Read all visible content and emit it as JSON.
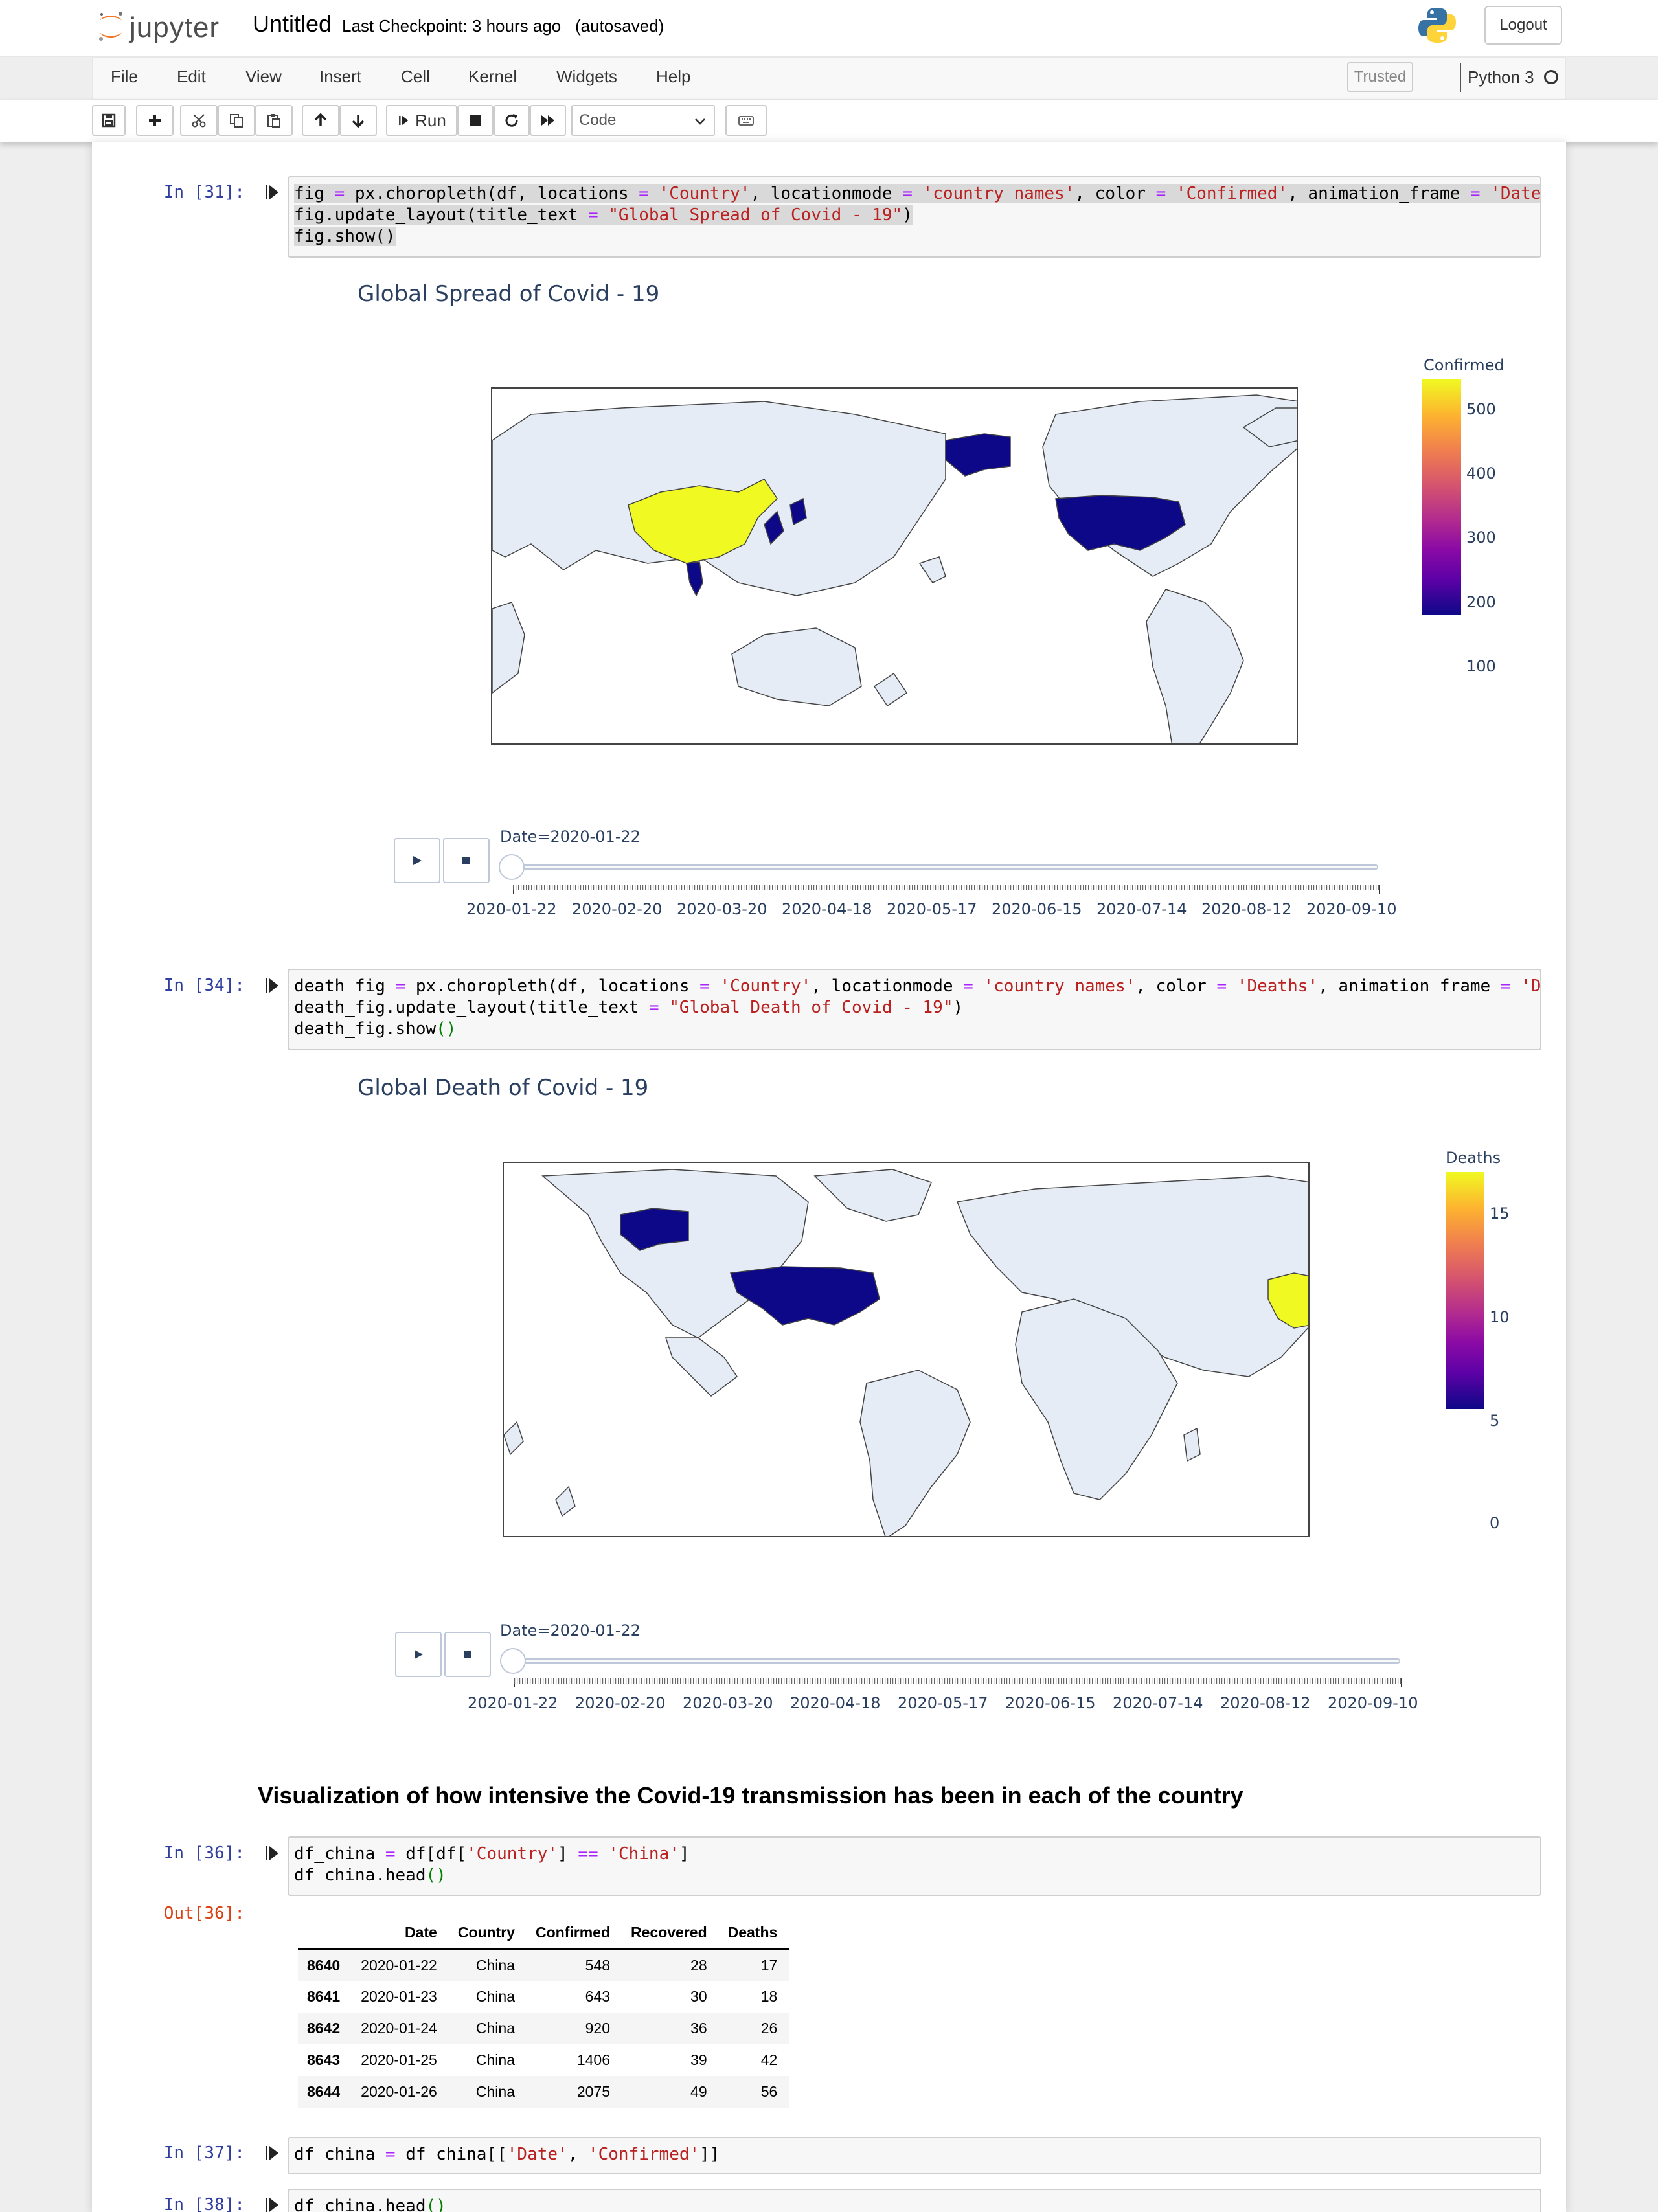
{
  "header": {
    "logo_text": "jupyter",
    "notebook_name": "Untitled",
    "checkpoint": "Last Checkpoint: 3 hours ago",
    "autosave": "(autosaved)",
    "logout_label": "Logout"
  },
  "menu": {
    "items": [
      "File",
      "Edit",
      "View",
      "Insert",
      "Cell",
      "Kernel",
      "Widgets",
      "Help"
    ],
    "trusted": "Trusted",
    "kernel": "Python 3"
  },
  "toolbar": {
    "run_label": "Run",
    "cell_type": "Code",
    "icons": [
      "save-icon",
      "plus-icon",
      "cut-icon",
      "copy-icon",
      "paste-icon",
      "arrow-up-icon",
      "arrow-down-icon",
      "run-icon",
      "stop-icon",
      "restart-icon",
      "fast-forward-icon",
      "keyboard-icon"
    ]
  },
  "cells": [
    {
      "prompt": "In [31]:",
      "lines": [
        [
          [
            "fig ",
            ""
          ],
          [
            "=",
            "op"
          ],
          [
            " px.choropleth(df, locations ",
            ""
          ],
          [
            "=",
            "op"
          ],
          [
            " ",
            ""
          ],
          [
            "'Country'",
            "str"
          ],
          [
            ", locationmode ",
            ""
          ],
          [
            "=",
            "op"
          ],
          [
            " ",
            ""
          ],
          [
            "'country names'",
            "str"
          ],
          [
            ", color ",
            ""
          ],
          [
            "=",
            "op"
          ],
          [
            " ",
            ""
          ],
          [
            "'Confirmed'",
            "str"
          ],
          [
            ", animation_frame ",
            ""
          ],
          [
            "=",
            "op"
          ],
          [
            " ",
            ""
          ],
          [
            "'Date'",
            "str"
          ],
          [
            ")",
            ""
          ]
        ],
        [
          [
            "fig.update_layout(title_text ",
            ""
          ],
          [
            "=",
            "op"
          ],
          [
            " ",
            ""
          ],
          [
            "\"Global Spread of Covid - 19\"",
            "str"
          ],
          [
            ")",
            ""
          ]
        ],
        [
          [
            "fig.show()",
            ""
          ]
        ]
      ],
      "plot": {
        "title": "Global Spread of Covid - 19",
        "colorbar_title": "Confirmed",
        "colorbar_ticks": [
          "500",
          "400",
          "300",
          "200",
          "100"
        ],
        "slider_label": "Date=2020-01-22",
        "slider_ticks": [
          "2020-01-22",
          "2020-02-20",
          "2020-03-20",
          "2020-04-18",
          "2020-05-17",
          "2020-06-15",
          "2020-07-14",
          "2020-08-12",
          "2020-09-10"
        ]
      }
    },
    {
      "prompt": "In [34]:",
      "lines": [
        [
          [
            "death_fig ",
            ""
          ],
          [
            "=",
            "op"
          ],
          [
            " px.choropleth(df, locations ",
            ""
          ],
          [
            "=",
            "op"
          ],
          [
            " ",
            ""
          ],
          [
            "'Country'",
            "str"
          ],
          [
            ", locationmode ",
            ""
          ],
          [
            "=",
            "op"
          ],
          [
            " ",
            ""
          ],
          [
            "'country names'",
            "str"
          ],
          [
            ", color ",
            ""
          ],
          [
            "=",
            "op"
          ],
          [
            " ",
            ""
          ],
          [
            "'Deaths'",
            "str"
          ],
          [
            ", animation_frame ",
            ""
          ],
          [
            "=",
            "op"
          ],
          [
            " ",
            ""
          ],
          [
            "'Dat",
            "str"
          ]
        ],
        [
          [
            "death_fig.update_layout(title_text ",
            ""
          ],
          [
            "=",
            "op"
          ],
          [
            " ",
            ""
          ],
          [
            "\"Global Death of Covid - 19\"",
            "str"
          ],
          [
            ")",
            ""
          ]
        ],
        [
          [
            "death_fig.show",
            ""
          ],
          [
            "()",
            "par"
          ]
        ]
      ],
      "plot": {
        "title": "Global Death of Covid - 19",
        "colorbar_title": "Deaths",
        "colorbar_ticks": [
          "15",
          "10",
          "5",
          "0"
        ],
        "slider_label": "Date=2020-01-22",
        "slider_ticks": [
          "2020-01-22",
          "2020-02-20",
          "2020-03-20",
          "2020-04-18",
          "2020-05-17",
          "2020-06-15",
          "2020-07-14",
          "2020-08-12",
          "2020-09-10"
        ]
      }
    }
  ],
  "markdown_heading": "Visualization of how intensive the Covid-19 transmission has been in each of the country",
  "cell36": {
    "prompt": "In [36]:",
    "out_prompt": "Out[36]:",
    "lines": [
      [
        [
          "df_china ",
          ""
        ],
        [
          "=",
          "op"
        ],
        [
          " df[df[",
          ""
        ],
        [
          "'Country'",
          "str"
        ],
        [
          "] ",
          ""
        ],
        [
          "==",
          "op"
        ],
        [
          " ",
          ""
        ],
        [
          "'China'",
          "str"
        ],
        [
          "]",
          ""
        ]
      ],
      [
        [
          "df_china.head",
          ""
        ],
        [
          "()",
          "par"
        ]
      ]
    ],
    "table": {
      "columns": [
        "",
        "Date",
        "Country",
        "Confirmed",
        "Recovered",
        "Deaths"
      ],
      "rows": [
        [
          "8640",
          "2020-01-22",
          "China",
          "548",
          "28",
          "17"
        ],
        [
          "8641",
          "2020-01-23",
          "China",
          "643",
          "30",
          "18"
        ],
        [
          "8642",
          "2020-01-24",
          "China",
          "920",
          "36",
          "26"
        ],
        [
          "8643",
          "2020-01-25",
          "China",
          "1406",
          "39",
          "42"
        ],
        [
          "8644",
          "2020-01-26",
          "China",
          "2075",
          "49",
          "56"
        ]
      ]
    }
  },
  "cell37": {
    "prompt": "In [37]:",
    "lines": [
      [
        [
          "df_china ",
          ""
        ],
        [
          "=",
          "op"
        ],
        [
          " df_china[[",
          ""
        ],
        [
          "'Date'",
          "str"
        ],
        [
          ", ",
          ""
        ],
        [
          "'Confirmed'",
          "str"
        ],
        [
          "]]",
          ""
        ]
      ]
    ]
  },
  "cell38": {
    "prompt": "In [38]:",
    "lines": [
      [
        [
          "df_china.head",
          ""
        ],
        [
          "()",
          "par"
        ]
      ]
    ]
  }
}
